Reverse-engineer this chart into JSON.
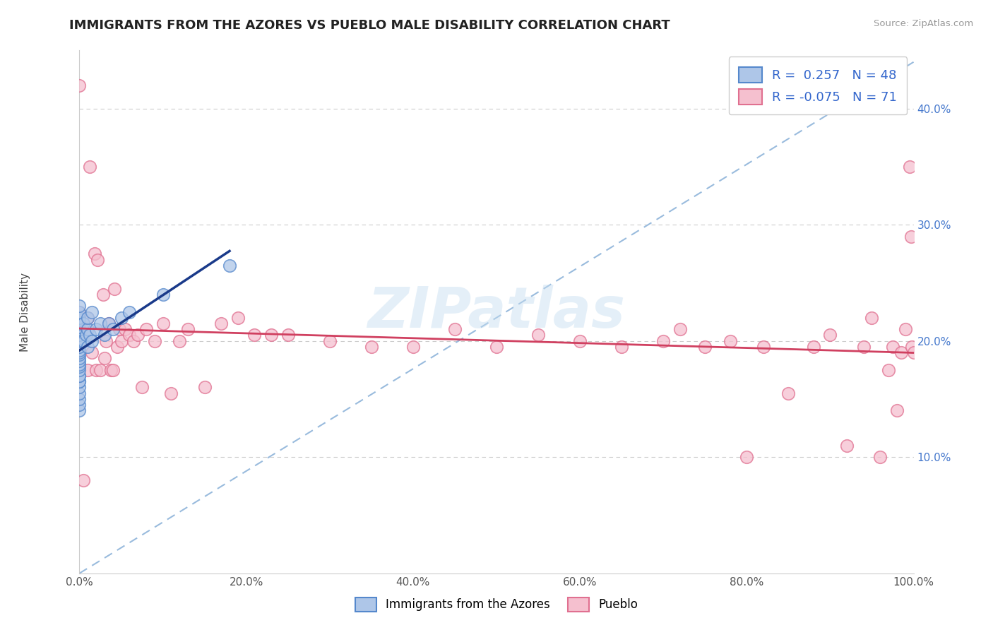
{
  "title": "IMMIGRANTS FROM THE AZORES VS PUEBLO MALE DISABILITY CORRELATION CHART",
  "source_text": "Source: ZipAtlas.com",
  "ylabel": "Male Disability",
  "watermark": "ZIPatlas",
  "legend_r_blue": "0.257",
  "legend_n_blue": "48",
  "legend_r_pink": "-0.075",
  "legend_n_pink": "71",
  "xlim": [
    0.0,
    1.0
  ],
  "ylim": [
    0.0,
    0.45
  ],
  "xticks": [
    0.0,
    0.2,
    0.4,
    0.6,
    0.8,
    1.0
  ],
  "xtick_labels": [
    "0.0%",
    "20.0%",
    "40.0%",
    "60.0%",
    "80.0%",
    "100.0%"
  ],
  "yticks": [
    0.1,
    0.2,
    0.3,
    0.4
  ],
  "ytick_labels": [
    "10.0%",
    "20.0%",
    "30.0%",
    "40.0%"
  ],
  "blue_fill_color": "#aec6e8",
  "blue_edge_color": "#5588cc",
  "pink_fill_color": "#f5c0cf",
  "pink_edge_color": "#e07090",
  "blue_line_color": "#1a3a8a",
  "pink_line_color": "#d04060",
  "diag_line_color": "#99bbdd",
  "grid_color": "#cccccc",
  "background_color": "#ffffff",
  "blue_scatter_x": [
    0.0,
    0.0,
    0.0,
    0.0,
    0.0,
    0.0,
    0.0,
    0.0,
    0.0,
    0.0,
    0.0,
    0.0,
    0.0,
    0.0,
    0.0,
    0.0,
    0.0,
    0.0,
    0.0,
    0.0,
    0.0,
    0.0,
    0.0,
    0.0,
    0.0,
    0.0,
    0.0,
    0.0,
    0.0,
    0.0,
    0.005,
    0.005,
    0.008,
    0.01,
    0.01,
    0.01,
    0.012,
    0.015,
    0.015,
    0.02,
    0.025,
    0.03,
    0.035,
    0.04,
    0.05,
    0.06,
    0.1,
    0.18
  ],
  "blue_scatter_y": [
    0.14,
    0.145,
    0.15,
    0.155,
    0.16,
    0.165,
    0.165,
    0.17,
    0.17,
    0.175,
    0.178,
    0.18,
    0.183,
    0.185,
    0.188,
    0.19,
    0.192,
    0.195,
    0.198,
    0.2,
    0.202,
    0.205,
    0.208,
    0.21,
    0.212,
    0.215,
    0.218,
    0.22,
    0.225,
    0.23,
    0.2,
    0.215,
    0.205,
    0.195,
    0.21,
    0.22,
    0.205,
    0.2,
    0.225,
    0.21,
    0.215,
    0.205,
    0.215,
    0.21,
    0.22,
    0.225,
    0.24,
    0.265
  ],
  "pink_scatter_x": [
    0.0,
    0.0,
    0.0,
    0.0,
    0.003,
    0.005,
    0.01,
    0.01,
    0.012,
    0.015,
    0.018,
    0.02,
    0.022,
    0.025,
    0.028,
    0.03,
    0.032,
    0.035,
    0.038,
    0.04,
    0.042,
    0.045,
    0.048,
    0.05,
    0.055,
    0.06,
    0.065,
    0.07,
    0.075,
    0.08,
    0.09,
    0.1,
    0.11,
    0.12,
    0.13,
    0.15,
    0.17,
    0.19,
    0.21,
    0.23,
    0.25,
    0.3,
    0.35,
    0.4,
    0.45,
    0.5,
    0.55,
    0.6,
    0.65,
    0.7,
    0.72,
    0.75,
    0.78,
    0.8,
    0.82,
    0.85,
    0.88,
    0.9,
    0.92,
    0.94,
    0.95,
    0.96,
    0.97,
    0.975,
    0.98,
    0.985,
    0.99,
    0.995,
    0.997,
    0.998,
    1.0
  ],
  "pink_scatter_y": [
    0.2,
    0.215,
    0.225,
    0.42,
    0.21,
    0.08,
    0.175,
    0.22,
    0.35,
    0.19,
    0.275,
    0.175,
    0.27,
    0.175,
    0.24,
    0.185,
    0.2,
    0.215,
    0.175,
    0.175,
    0.245,
    0.195,
    0.21,
    0.2,
    0.21,
    0.205,
    0.2,
    0.205,
    0.16,
    0.21,
    0.2,
    0.215,
    0.155,
    0.2,
    0.21,
    0.16,
    0.215,
    0.22,
    0.205,
    0.205,
    0.205,
    0.2,
    0.195,
    0.195,
    0.21,
    0.195,
    0.205,
    0.2,
    0.195,
    0.2,
    0.21,
    0.195,
    0.2,
    0.1,
    0.195,
    0.155,
    0.195,
    0.205,
    0.11,
    0.195,
    0.22,
    0.1,
    0.175,
    0.195,
    0.14,
    0.19,
    0.21,
    0.35,
    0.29,
    0.195,
    0.19
  ]
}
